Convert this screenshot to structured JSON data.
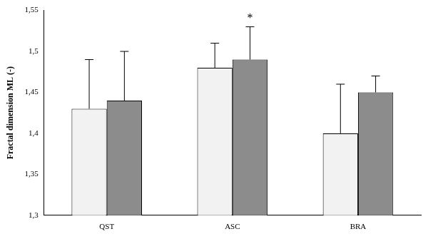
{
  "chart_data": {
    "type": "bar",
    "y_label": "Fractal dimension ML (-)",
    "categories": [
      "QST",
      "ASC",
      "BRA"
    ],
    "series": [
      {
        "color": "#f2f2f2",
        "values": [
          1.43,
          1.48,
          1.4
        ],
        "errors": [
          0.06,
          0.03,
          0.06
        ]
      },
      {
        "color": "#8c8c8c",
        "values": [
          1.44,
          1.49,
          1.45
        ],
        "errors": [
          0.06,
          0.04,
          0.02
        ]
      }
    ],
    "ylim": [
      1.3,
      1.55
    ],
    "yticks": [
      {
        "value": 1.3,
        "label": "1,3"
      },
      {
        "value": 1.35,
        "label": "1,35"
      },
      {
        "value": 1.4,
        "label": "1,4"
      },
      {
        "value": 1.45,
        "label": "1,45"
      },
      {
        "value": 1.5,
        "label": "1,5"
      },
      {
        "value": 1.55,
        "label": "1,55"
      }
    ],
    "grid": false,
    "annotations": [
      {
        "text": "*",
        "category": "ASC"
      }
    ]
  }
}
